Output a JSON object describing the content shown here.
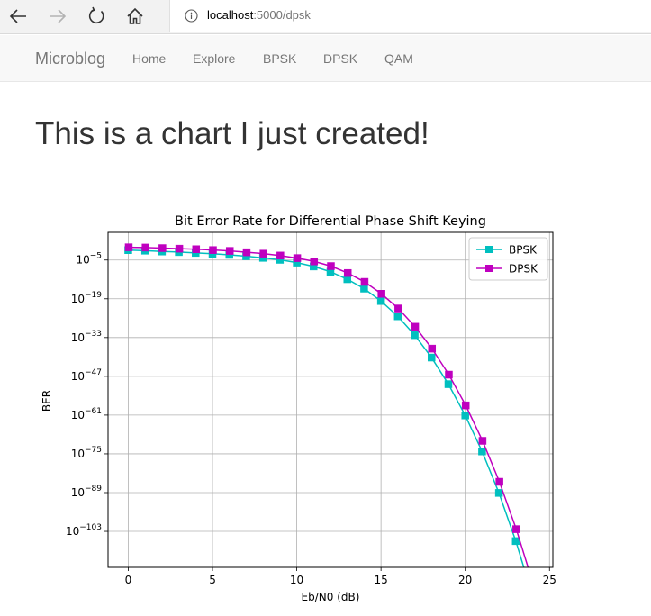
{
  "browser": {
    "url_host": "localhost",
    "url_path": ":5000/dpsk"
  },
  "navbar": {
    "brand": "Microblog",
    "links": [
      "Home",
      "Explore",
      "BPSK",
      "DPSK",
      "QAM"
    ]
  },
  "heading": "This is a chart I just created!",
  "chart_data": {
    "type": "line",
    "title": "Bit Error Rate for Differential Phase Shift Keying",
    "xlabel": "Eb/N0 (dB)",
    "ylabel": "BER",
    "xlim": [
      -1.2,
      25.2
    ],
    "ylim_log10": [
      -116,
      5
    ],
    "yscale": "log",
    "grid": true,
    "legend_position": "top-right",
    "x_ticks": [
      0,
      5,
      10,
      15,
      20,
      25
    ],
    "y_ticks_exp": [
      -5,
      -19,
      -33,
      -47,
      -61,
      -75,
      -89,
      -103
    ],
    "x": [
      0,
      1,
      2,
      3,
      4,
      5,
      6,
      7,
      8,
      9,
      10,
      11,
      12,
      13,
      14,
      15,
      16,
      17,
      18,
      19,
      20,
      21,
      22,
      23,
      24
    ],
    "series": [
      {
        "name": "BPSK",
        "color": "#00bfbf",
        "log10_values": [
          -1.1,
          -1.3,
          -1.6,
          -1.8,
          -2.1,
          -2.4,
          -2.8,
          -3.3,
          -3.9,
          -4.6,
          -5.6,
          -7.0,
          -8.9,
          -11.6,
          -15.0,
          -19.5,
          -25.0,
          -31.8,
          -39.9,
          -49.5,
          -60.8,
          -73.8,
          -88.8,
          -106.2,
          -126.1
        ]
      },
      {
        "name": "DPSK",
        "color": "#bf00bf",
        "log10_values": [
          -0.4,
          -0.5,
          -0.7,
          -0.9,
          -1.1,
          -1.4,
          -1.7,
          -2.2,
          -2.7,
          -3.4,
          -4.3,
          -5.5,
          -7.2,
          -9.7,
          -12.9,
          -17.2,
          -22.5,
          -29.1,
          -37.0,
          -46.4,
          -57.5,
          -70.3,
          -85.1,
          -102.2,
          -121.9
        ]
      }
    ]
  },
  "icons": {
    "back": "back-arrow-icon",
    "forward": "forward-arrow-icon",
    "refresh": "refresh-icon",
    "home": "home-icon",
    "info": "info-icon"
  }
}
